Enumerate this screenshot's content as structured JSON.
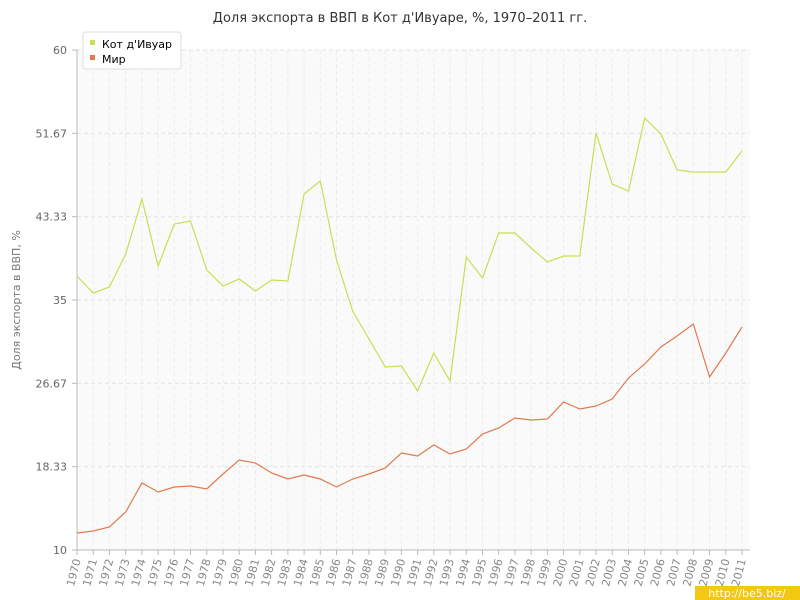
{
  "chart_data": {
    "type": "line",
    "title": "Доля экспорта в ВВП в Кот д'Ивуаре, %, 1970–2011 гг.",
    "xlabel": "",
    "ylabel": "Доля экспорта в ВВП, %",
    "ylim": [
      10,
      60
    ],
    "yticks": [
      "10",
      "18.33",
      "26.67",
      "35",
      "43.33",
      "51.67",
      "60"
    ],
    "x": [
      "1970",
      "1971",
      "1972",
      "1973",
      "1974",
      "1975",
      "1976",
      "1977",
      "1978",
      "1979",
      "1980",
      "1981",
      "1982",
      "1983",
      "1984",
      "1985",
      "1986",
      "1987",
      "1988",
      "1989",
      "1990",
      "1991",
      "1992",
      "1993",
      "1994",
      "1995",
      "1996",
      "1997",
      "1998",
      "1999",
      "2000",
      "2001",
      "2002",
      "2003",
      "2004",
      "2005",
      "2006",
      "2007",
      "2008",
      "2009",
      "2010",
      "2011"
    ],
    "grid": true,
    "legend_position": "top-left",
    "series": [
      {
        "name": "Кот д'Ивуар",
        "color": "#c6e055",
        "values": [
          37.4,
          35.7,
          36.3,
          39.6,
          45.1,
          38.4,
          42.6,
          42.9,
          38.0,
          36.4,
          37.1,
          35.9,
          37.0,
          36.9,
          45.6,
          46.9,
          39.0,
          33.9,
          31.1,
          28.3,
          28.4,
          25.9,
          29.7,
          26.9,
          39.3,
          37.2,
          41.7,
          41.7,
          40.2,
          38.8,
          39.4,
          39.4,
          51.7,
          46.6,
          45.9,
          53.2,
          51.6,
          48.0,
          47.8,
          47.8,
          47.8,
          49.9
        ]
      },
      {
        "name": "Мир",
        "color": "#e07a4f",
        "values": [
          11.7,
          11.9,
          12.3,
          13.8,
          16.7,
          15.8,
          16.3,
          16.4,
          16.1,
          17.6,
          19.0,
          18.7,
          17.7,
          17.1,
          17.5,
          17.1,
          16.3,
          17.1,
          17.6,
          18.2,
          19.7,
          19.4,
          20.5,
          19.6,
          20.1,
          21.6,
          22.2,
          23.2,
          23.0,
          23.1,
          24.8,
          24.1,
          24.4,
          25.1,
          27.2,
          28.6,
          30.3,
          31.4,
          32.6,
          27.3,
          29.7,
          32.3
        ]
      }
    ]
  },
  "watermark": "http://be5.biz/"
}
